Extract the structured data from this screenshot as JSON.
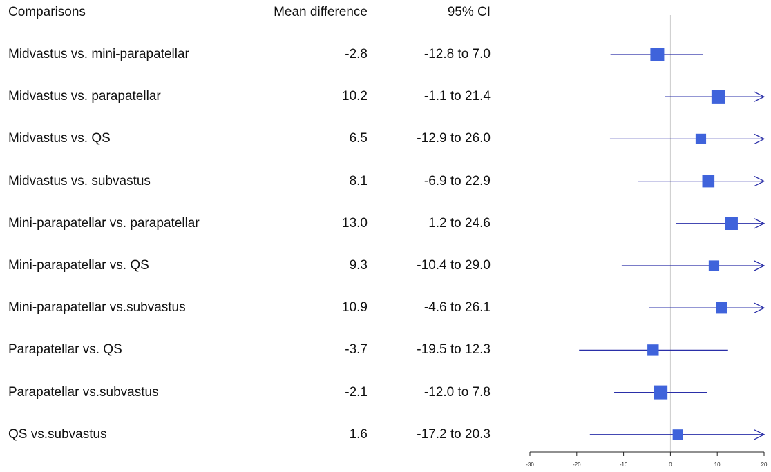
{
  "headers": {
    "comparisons": "Comparisons",
    "mean_difference": "Mean difference",
    "ci": "95% CI"
  },
  "chart_data": {
    "type": "forest",
    "title": "",
    "xlabel": "",
    "xlim": [
      -30,
      20
    ],
    "xticks": [
      -30,
      -20,
      -10,
      0,
      10,
      20
    ],
    "xtick_labels": [
      "-30",
      "-20",
      "-10",
      "0",
      "10",
      "20"
    ],
    "reference_line": 0,
    "marker_color": "#3f63db",
    "line_color": "#2a2fa8",
    "rows": [
      {
        "label": "Midvastus vs. mini-parapatellar",
        "md_text": "-2.8",
        "ci_text": "-12.8 to 7.0",
        "md": -2.8,
        "lo": -12.8,
        "hi": 7.0,
        "weight": 1.0
      },
      {
        "label": "Midvastus vs. parapatellar",
        "md_text": "10.2",
        "ci_text": "-1.1 to 21.4",
        "md": 10.2,
        "lo": -1.1,
        "hi": 21.4,
        "weight": 0.95
      },
      {
        "label": "Midvastus vs. QS",
        "md_text": "6.5",
        "ci_text": "-12.9 to 26.0",
        "md": 6.5,
        "lo": -12.9,
        "hi": 26.0,
        "weight": 0.6
      },
      {
        "label": "Midvastus vs. subvastus",
        "md_text": "8.1",
        "ci_text": "-6.9 to 22.9",
        "md": 8.1,
        "lo": -6.9,
        "hi": 22.9,
        "weight": 0.8
      },
      {
        "label": "Mini-parapatellar vs. parapatellar",
        "md_text": "13.0",
        "ci_text": "1.2 to 24.6",
        "md": 13.0,
        "lo": 1.2,
        "hi": 24.6,
        "weight": 0.9
      },
      {
        "label": "Mini-parapatellar vs. QS",
        "md_text": "9.3",
        "ci_text": "-10.4 to 29.0",
        "md": 9.3,
        "lo": -10.4,
        "hi": 29.0,
        "weight": 0.6
      },
      {
        "label": "Mini-parapatellar vs.subvastus",
        "md_text": "10.9",
        "ci_text": "-4.6 to 26.1",
        "md": 10.9,
        "lo": -4.6,
        "hi": 26.1,
        "weight": 0.7
      },
      {
        "label": "Parapatellar vs. QS",
        "md_text": "-3.7",
        "ci_text": "-19.5 to 12.3",
        "md": -3.7,
        "lo": -19.5,
        "hi": 12.3,
        "weight": 0.7
      },
      {
        "label": "Parapatellar vs.subvastus",
        "md_text": "-2.1",
        "ci_text": "-12.0 to 7.8",
        "md": -2.1,
        "lo": -12.0,
        "hi": 7.8,
        "weight": 1.0
      },
      {
        "label": "QS vs.subvastus",
        "md_text": "1.6",
        "ci_text": "-17.2 to 20.3",
        "md": 1.6,
        "lo": -17.2,
        "hi": 20.3,
        "weight": 0.6
      }
    ]
  }
}
